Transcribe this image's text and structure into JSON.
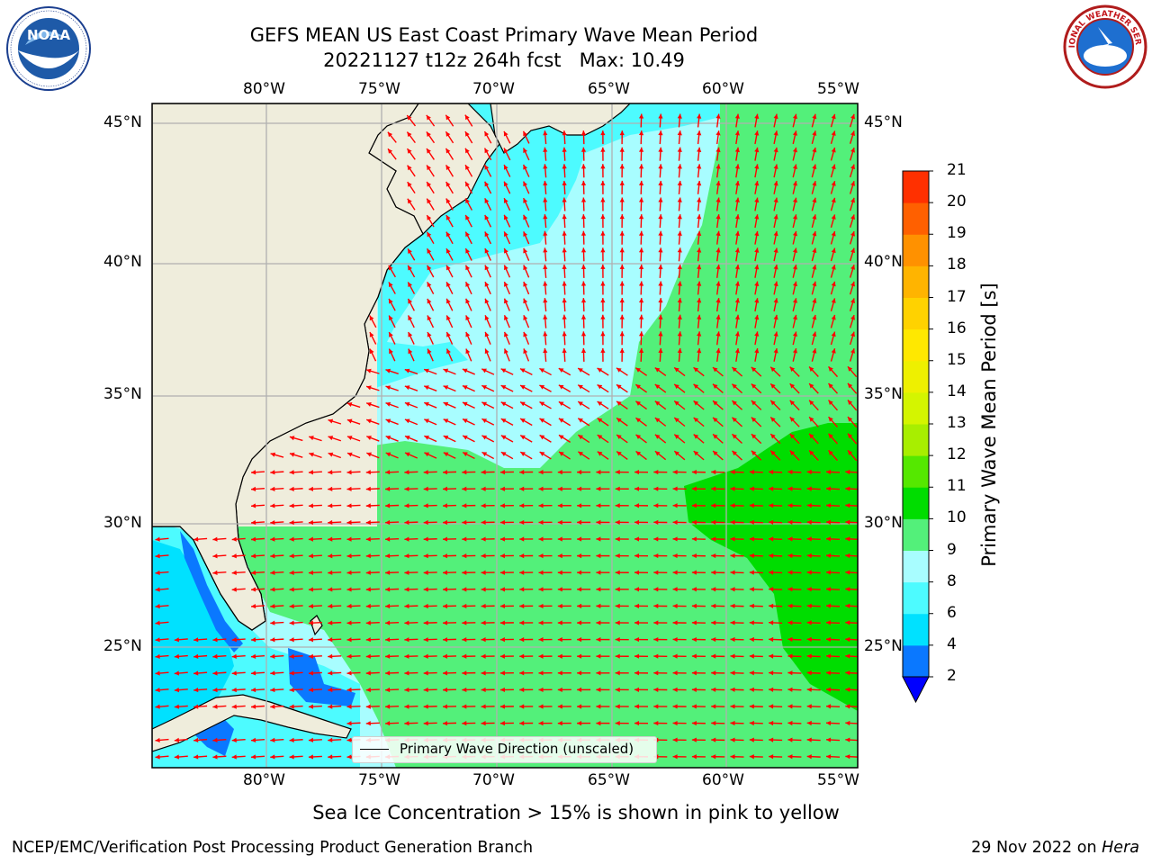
{
  "title_line1": "GEFS MEAN US East Coast Primary Wave Mean Period",
  "title_line2": "20221127 t12z 264h fcst   Max: 10.49",
  "logos": {
    "left": "NOAA",
    "right": "NATIONAL WEATHER SERVICE"
  },
  "colors": {
    "land": "#efeddc",
    "arrow": "#ff0000",
    "grid": "#b0b0b0"
  },
  "map": {
    "lon_labels": [
      "80°W",
      "75°W",
      "70°W",
      "65°W",
      "60°W",
      "55°W"
    ],
    "lat_labels": [
      "45°N",
      "40°N",
      "35°N",
      "30°N",
      "25°N"
    ],
    "legend_label": "Primary Wave Direction (unscaled)"
  },
  "colorbar": {
    "label": "Primary Wave Mean Period [s]",
    "ticks": [
      "2",
      "4",
      "6",
      "8",
      "9",
      "10",
      "11",
      "12",
      "13",
      "14",
      "15",
      "16",
      "17",
      "18",
      "19",
      "20",
      "21"
    ],
    "colors": [
      "#0a78ff",
      "#00e1ff",
      "#4dfbff",
      "#a8fdff",
      "#53f07a",
      "#00dd00",
      "#55e800",
      "#a8ee00",
      "#d4f500",
      "#eef000",
      "#ffe800",
      "#ffd200",
      "#ffb400",
      "#ff9100",
      "#ff6000",
      "#ff3000",
      "#ff0000"
    ],
    "extend_color": "#0000ff"
  },
  "note": "Sea Ice Concentration > 15% is shown in pink to yellow",
  "footer": {
    "left": "NCEP/EMC/Verification Post Processing Product Generation Branch",
    "date": "29 Nov 2022 on",
    "machine": "Hera"
  }
}
